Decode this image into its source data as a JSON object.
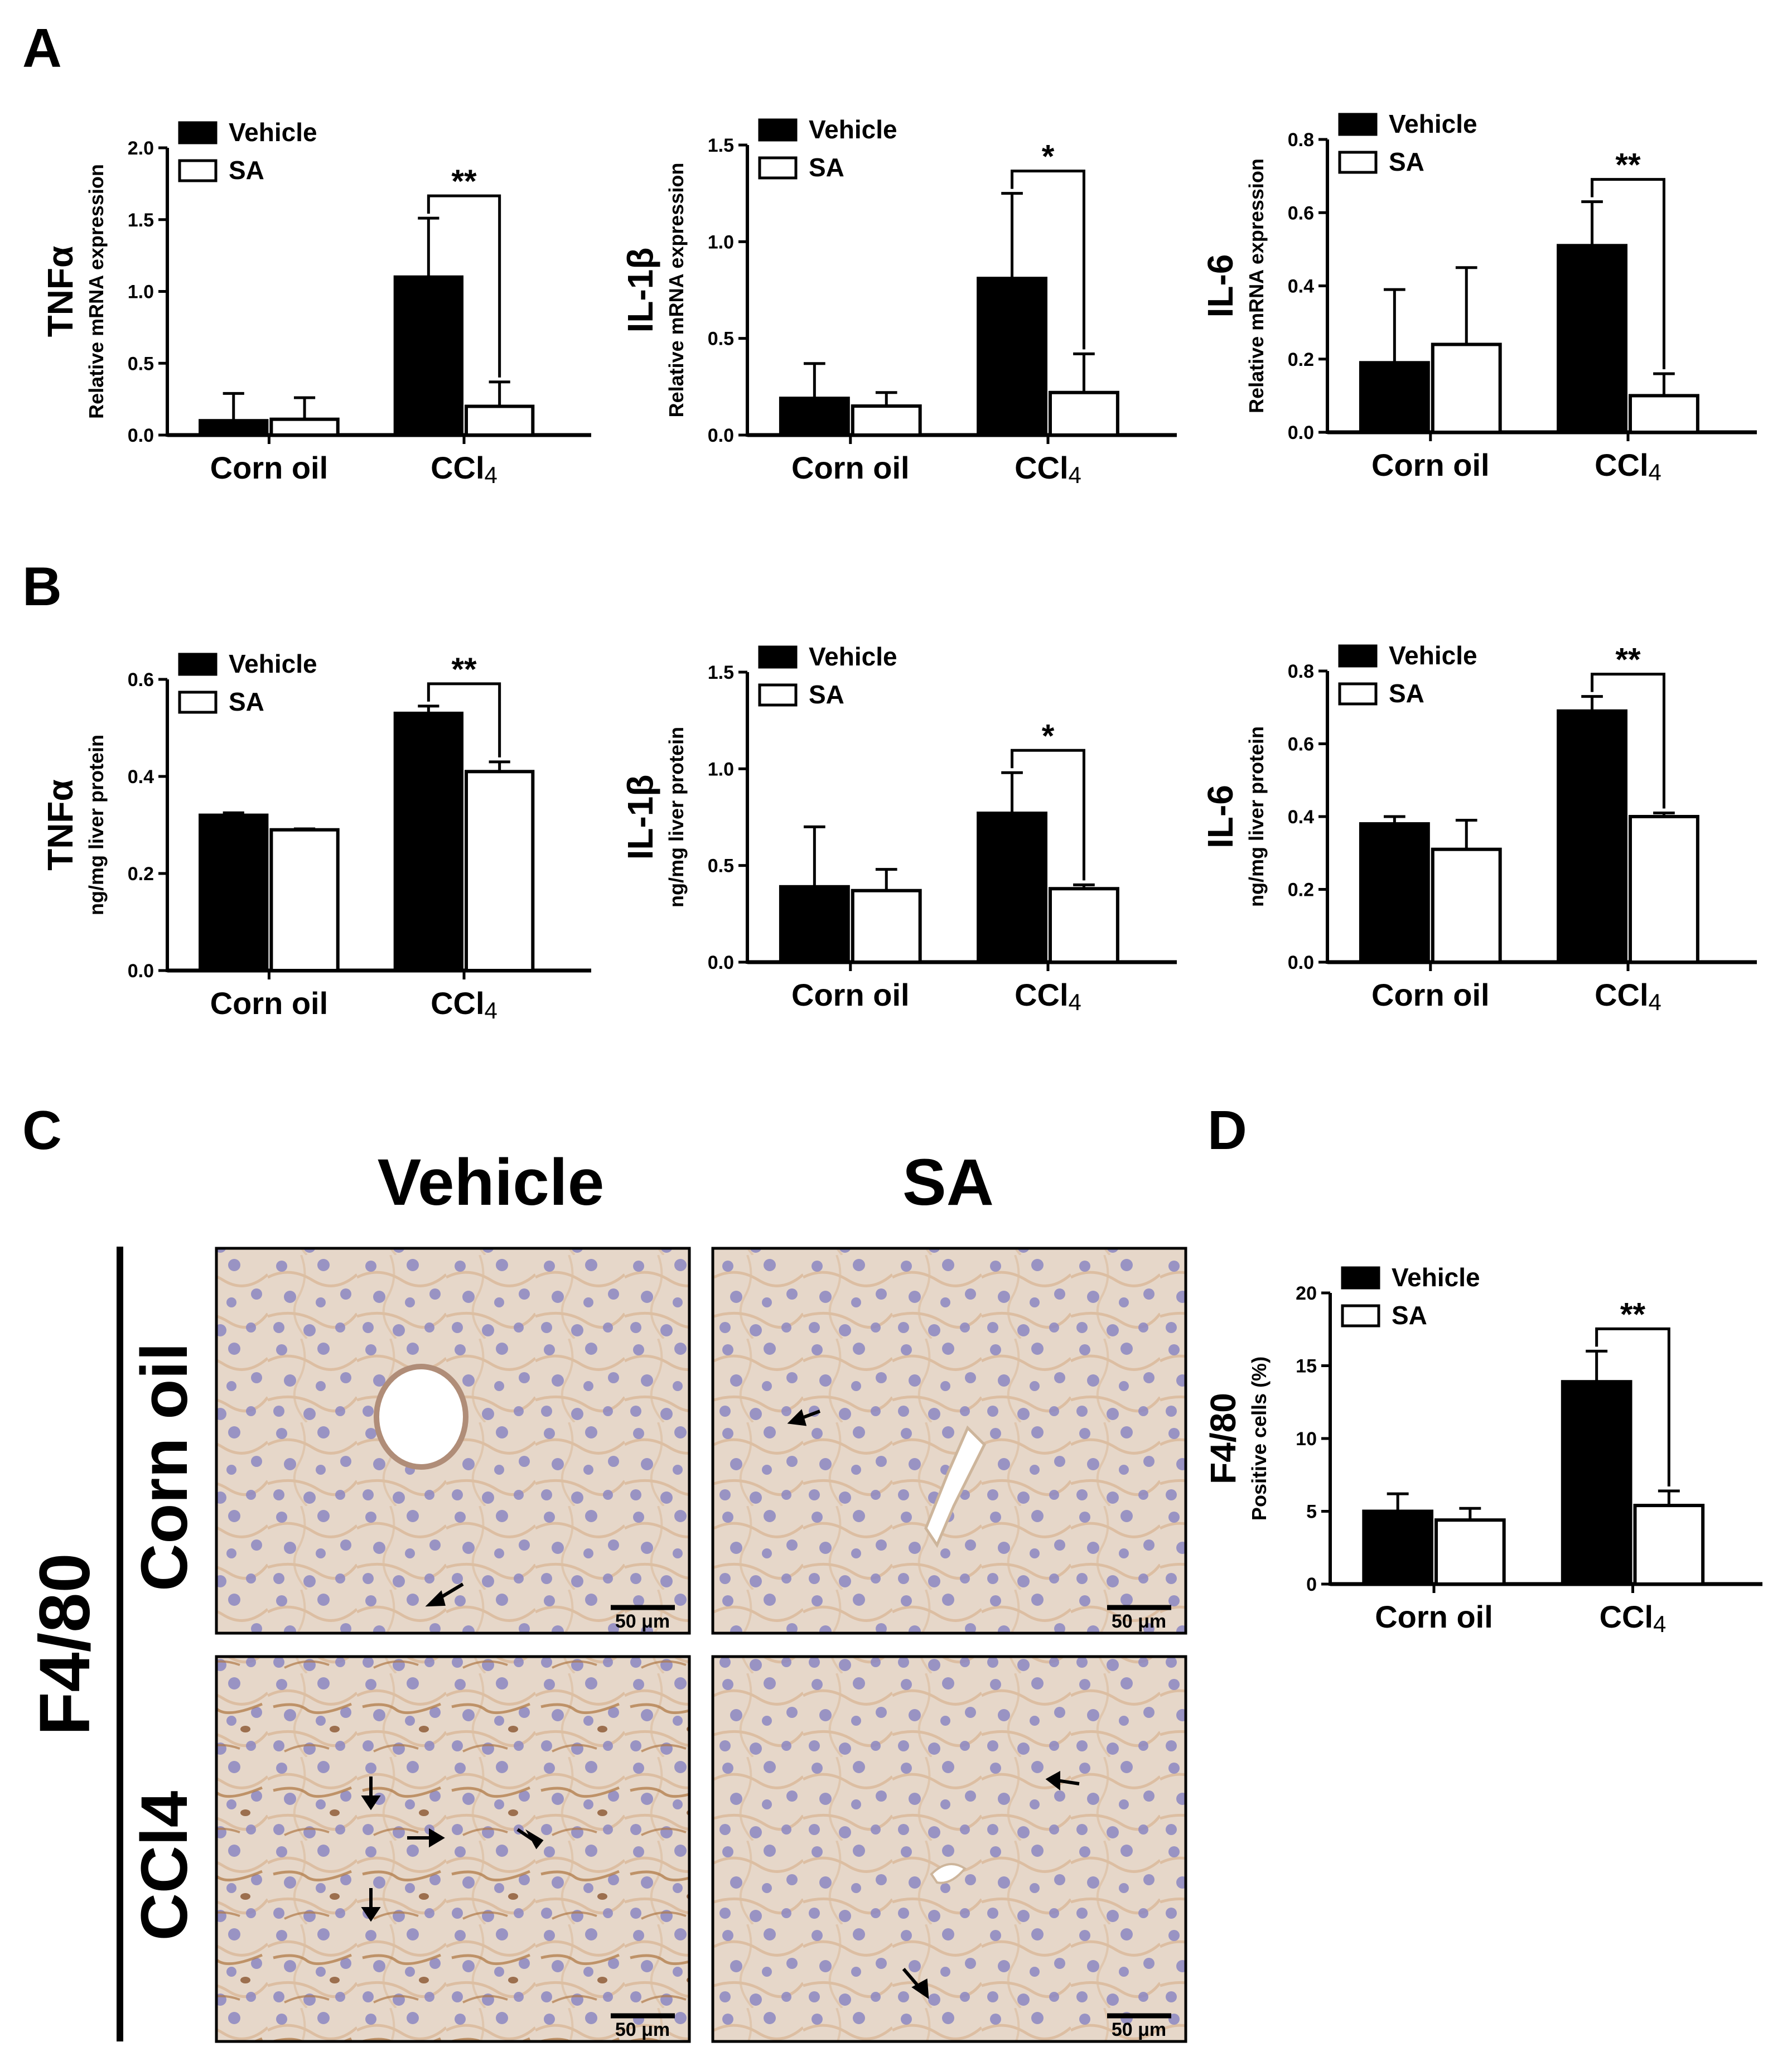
{
  "panel_letters": {
    "a": "A",
    "b": "B",
    "c": "C",
    "d": "D"
  },
  "legend": {
    "vehicle": "Vehicle",
    "sa": "SA"
  },
  "groups": [
    "Corn oil",
    "CCl4"
  ],
  "colors": {
    "vehicle": "#000000",
    "sa": "#ffffff",
    "axis": "#000000"
  },
  "micrograph": {
    "col_labels": [
      "Vehicle",
      "SA"
    ],
    "row_labels": [
      "Corn oil",
      "CCl4"
    ],
    "stain_label": "F4/80",
    "scale_bar": "50 μm",
    "colors": {
      "background": "#e6d7c9",
      "nucleus": "#7e79b8",
      "stain": "#a06a3e"
    }
  },
  "chart_data": [
    {
      "panel": "A",
      "type": "bar",
      "title": "",
      "ylabel_big": "TNFα",
      "ylabel": "Relative mRNA expression",
      "categories": [
        "Corn oil",
        "CCl4"
      ],
      "ylim": [
        0,
        2.0
      ],
      "yticks": [
        "0.0",
        "0.5",
        "1.0",
        "1.5",
        "2.0"
      ],
      "series": [
        {
          "name": "Vehicle",
          "values": [
            0.1,
            1.1
          ],
          "errors": [
            0.19,
            0.41
          ]
        },
        {
          "name": "SA",
          "values": [
            0.11,
            0.2
          ],
          "errors": [
            0.15,
            0.17
          ]
        }
      ],
      "significance": "**",
      "legend": "top-left",
      "grid": false
    },
    {
      "panel": "A",
      "type": "bar",
      "title": "",
      "ylabel_big": "IL-1β",
      "ylabel": "Relative mRNA expression",
      "categories": [
        "Corn oil",
        "CCl4"
      ],
      "ylim": [
        0,
        1.5
      ],
      "yticks": [
        "0.0",
        "0.5",
        "1.0",
        "1.5"
      ],
      "series": [
        {
          "name": "Vehicle",
          "values": [
            0.19,
            0.81
          ],
          "errors": [
            0.18,
            0.44
          ]
        },
        {
          "name": "SA",
          "values": [
            0.15,
            0.22
          ],
          "errors": [
            0.07,
            0.2
          ]
        }
      ],
      "significance": "*",
      "legend": "top-left",
      "grid": false
    },
    {
      "panel": "A",
      "type": "bar",
      "title": "",
      "ylabel_big": "IL-6",
      "ylabel": "Relative mRNA expression",
      "categories": [
        "Corn oil",
        "CCl4"
      ],
      "ylim": [
        0,
        0.8
      ],
      "yticks": [
        "0.0",
        "0.2",
        "0.4",
        "0.6",
        "0.8"
      ],
      "series": [
        {
          "name": "Vehicle",
          "values": [
            0.19,
            0.51
          ],
          "errors": [
            0.2,
            0.12
          ]
        },
        {
          "name": "SA",
          "values": [
            0.24,
            0.1
          ],
          "errors": [
            0.21,
            0.06
          ]
        }
      ],
      "significance": "**",
      "legend": "top-left",
      "grid": false
    },
    {
      "panel": "B",
      "type": "bar",
      "title": "",
      "ylabel_big": "TNFα",
      "ylabel": "ng/mg liver protein",
      "categories": [
        "Corn oil",
        "CCl4"
      ],
      "ylim": [
        0,
        0.6
      ],
      "yticks": [
        "0.0",
        "0.2",
        "0.4",
        "0.6"
      ],
      "series": [
        {
          "name": "Vehicle",
          "values": [
            0.32,
            0.53
          ],
          "errors": [
            0.005,
            0.015
          ]
        },
        {
          "name": "SA",
          "values": [
            0.29,
            0.41
          ],
          "errors": [
            0.002,
            0.02
          ]
        }
      ],
      "significance": "**",
      "legend": "top-left",
      "grid": false
    },
    {
      "panel": "B",
      "type": "bar",
      "title": "",
      "ylabel_big": "IL-1β",
      "ylabel": "ng/mg liver protein",
      "categories": [
        "Corn oil",
        "CCl4"
      ],
      "ylim": [
        0,
        1.5
      ],
      "yticks": [
        "0.0",
        "0.5",
        "1.0",
        "1.5"
      ],
      "series": [
        {
          "name": "Vehicle",
          "values": [
            0.39,
            0.77
          ],
          "errors": [
            0.31,
            0.21
          ]
        },
        {
          "name": "SA",
          "values": [
            0.37,
            0.38
          ],
          "errors": [
            0.11,
            0.02
          ]
        }
      ],
      "significance": "*",
      "legend": "top-left",
      "grid": false
    },
    {
      "panel": "B",
      "type": "bar",
      "title": "",
      "ylabel_big": "IL-6",
      "ylabel": "ng/mg liver protein",
      "categories": [
        "Corn oil",
        "CCl4"
      ],
      "ylim": [
        0,
        0.8
      ],
      "yticks": [
        "0.0",
        "0.2",
        "0.4",
        "0.6",
        "0.8"
      ],
      "series": [
        {
          "name": "Vehicle",
          "values": [
            0.38,
            0.69
          ],
          "errors": [
            0.02,
            0.04
          ]
        },
        {
          "name": "SA",
          "values": [
            0.31,
            0.4
          ],
          "errors": [
            0.08,
            0.01
          ]
        }
      ],
      "significance": "**",
      "legend": "top-left",
      "grid": false
    },
    {
      "panel": "D",
      "type": "bar",
      "title": "",
      "ylabel_big": "F4/80",
      "ylabel": "Positive cells (%)",
      "categories": [
        "Corn oil",
        "CCl4"
      ],
      "ylim": [
        0,
        20
      ],
      "yticks": [
        "0",
        "5",
        "10",
        "15",
        "20"
      ],
      "series": [
        {
          "name": "Vehicle",
          "values": [
            5.0,
            13.9
          ],
          "errors": [
            1.2,
            2.1
          ]
        },
        {
          "name": "SA",
          "values": [
            4.4,
            5.4
          ],
          "errors": [
            0.8,
            1.0
          ]
        }
      ],
      "significance": "**",
      "legend": "top-left",
      "grid": false
    }
  ]
}
